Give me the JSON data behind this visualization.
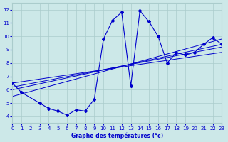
{
  "xlabel": "Graphe des températures (°c)",
  "bg_color": "#cce8e8",
  "grid_color": "#aacccc",
  "line_color": "#0000cc",
  "xlim": [
    0,
    23
  ],
  "ylim": [
    3.5,
    12.5
  ],
  "xticks": [
    0,
    1,
    2,
    3,
    4,
    5,
    6,
    7,
    8,
    9,
    10,
    11,
    12,
    13,
    14,
    15,
    16,
    17,
    18,
    19,
    20,
    21,
    22,
    23
  ],
  "yticks": [
    4,
    5,
    6,
    7,
    8,
    9,
    10,
    11,
    12
  ],
  "main_series_x": [
    0,
    1,
    3,
    4,
    5,
    6,
    7,
    8,
    9,
    10,
    11,
    12,
    13,
    14,
    15,
    16,
    17,
    18,
    19,
    20,
    21,
    22,
    23
  ],
  "main_series_y": [
    6.5,
    5.8,
    5.0,
    4.6,
    4.4,
    4.1,
    4.5,
    4.4,
    5.3,
    9.8,
    11.2,
    11.8,
    6.3,
    11.9,
    11.1,
    10.0,
    8.0,
    8.8,
    8.6,
    8.8,
    9.4,
    9.9,
    9.4
  ],
  "trend_lines": [
    {
      "x": [
        0,
        23
      ],
      "y": [
        6.0,
        9.4
      ]
    },
    {
      "x": [
        0,
        23
      ],
      "y": [
        5.5,
        9.8
      ]
    },
    {
      "x": [
        0,
        23
      ],
      "y": [
        6.5,
        8.8
      ]
    },
    {
      "x": [
        0,
        23
      ],
      "y": [
        6.2,
        9.2
      ]
    }
  ]
}
